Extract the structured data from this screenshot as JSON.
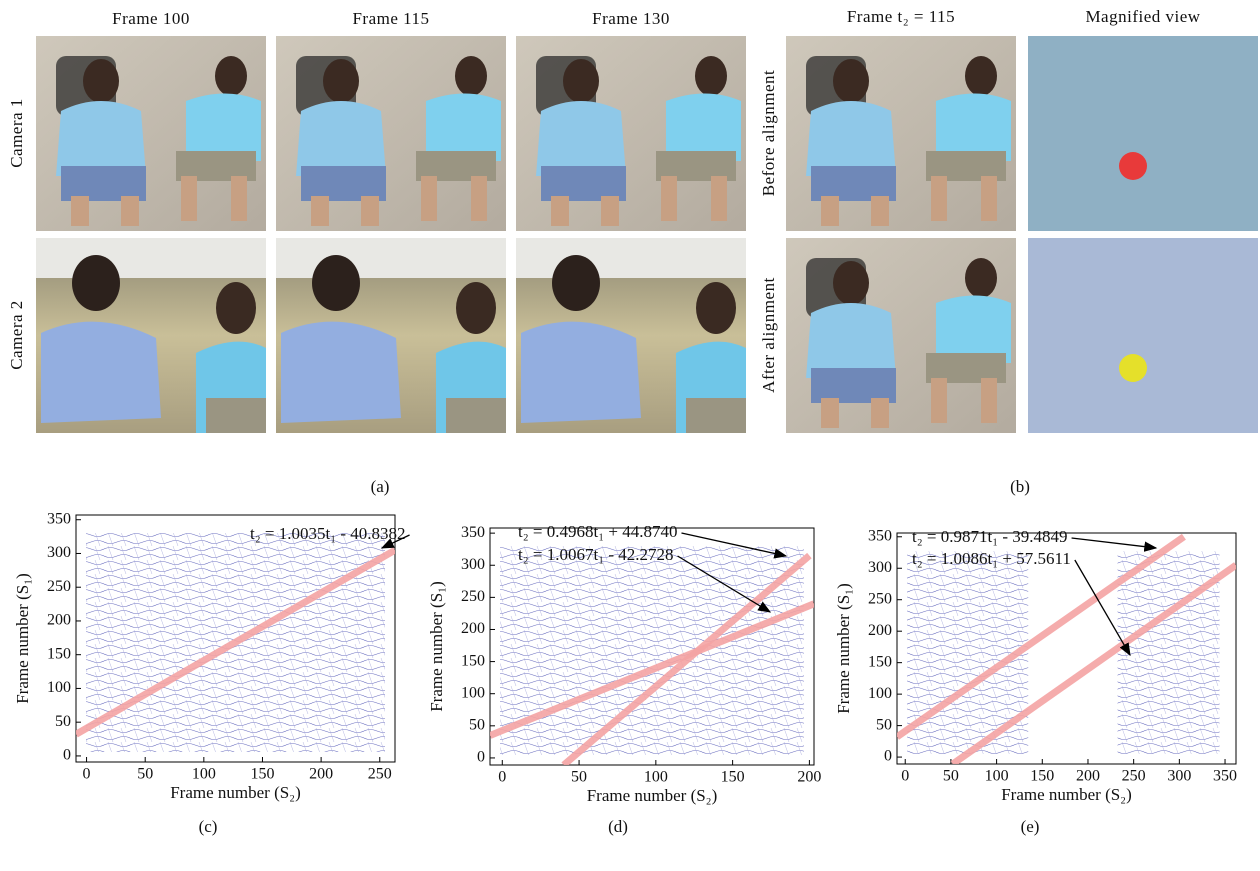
{
  "panel_a": {
    "columns": [
      "Frame 100",
      "Frame 115",
      "Frame 130"
    ],
    "rows": [
      "Camera 1",
      "Camera 2"
    ],
    "caption": "(a)"
  },
  "panel_b": {
    "columns": [
      "Frame t₂ = 115",
      "Magnified view"
    ],
    "rows": [
      "Before alignment",
      "After alignment"
    ],
    "caption": "(b)"
  },
  "chart_data": [
    {
      "type": "line",
      "caption": "(c)",
      "xlabel": "Frame number (S₂)",
      "ylabel": "Frame number (S₁)",
      "xlim": [
        -9,
        263
      ],
      "ylim": [
        -9,
        357
      ],
      "xticks": [
        0,
        50,
        100,
        150,
        200,
        250
      ],
      "yticks": [
        0,
        50,
        100,
        150,
        200,
        250,
        300,
        350
      ],
      "series": [
        {
          "color": "#f4a3a3",
          "x": [
            -9,
            263
          ],
          "values": [
            32,
            305
          ]
        }
      ],
      "annotations": [
        "t₂ = 1.0035t₁ - 40.8382"
      ]
    },
    {
      "type": "line",
      "caption": "(d)",
      "xlabel": "Frame number (S₂)",
      "ylabel": "Frame number (S₁)",
      "xlim": [
        -8,
        203
      ],
      "ylim": [
        -11,
        358
      ],
      "xticks": [
        0,
        50,
        100,
        150,
        200
      ],
      "yticks": [
        0,
        50,
        100,
        150,
        200,
        250,
        300,
        350
      ],
      "series": [
        {
          "color": "#f4a3a3",
          "x": [
            -8,
            203
          ],
          "values": [
            35,
            240
          ]
        },
        {
          "color": "#f4a3a3",
          "x": [
            40,
            200
          ],
          "values": [
            -11,
            315
          ]
        }
      ],
      "annotations": [
        "t₂ = 0.4968t₁ + 44.8740",
        "t₂ = 1.0067t₁ - 42.2728"
      ]
    },
    {
      "type": "line",
      "caption": "(e)",
      "xlabel": "Frame number (S₂)",
      "ylabel": "Frame number (S₁)",
      "xlim": [
        -9,
        362
      ],
      "ylim": [
        -11,
        356
      ],
      "xticks": [
        0,
        50,
        100,
        150,
        200,
        250,
        300,
        350
      ],
      "yticks": [
        0,
        50,
        100,
        150,
        200,
        250,
        300,
        350
      ],
      "series": [
        {
          "color": "#f4a3a3",
          "x": [
            -9,
            305
          ],
          "values": [
            32,
            350
          ]
        },
        {
          "color": "#f4a3a3",
          "x": [
            52,
            362
          ],
          "values": [
            -11,
            305
          ]
        }
      ],
      "annotations": [
        "t₂ = 0.9871t₁ - 39.4849",
        "t₂ = 1.0086t₁ + 57.5611"
      ]
    }
  ]
}
